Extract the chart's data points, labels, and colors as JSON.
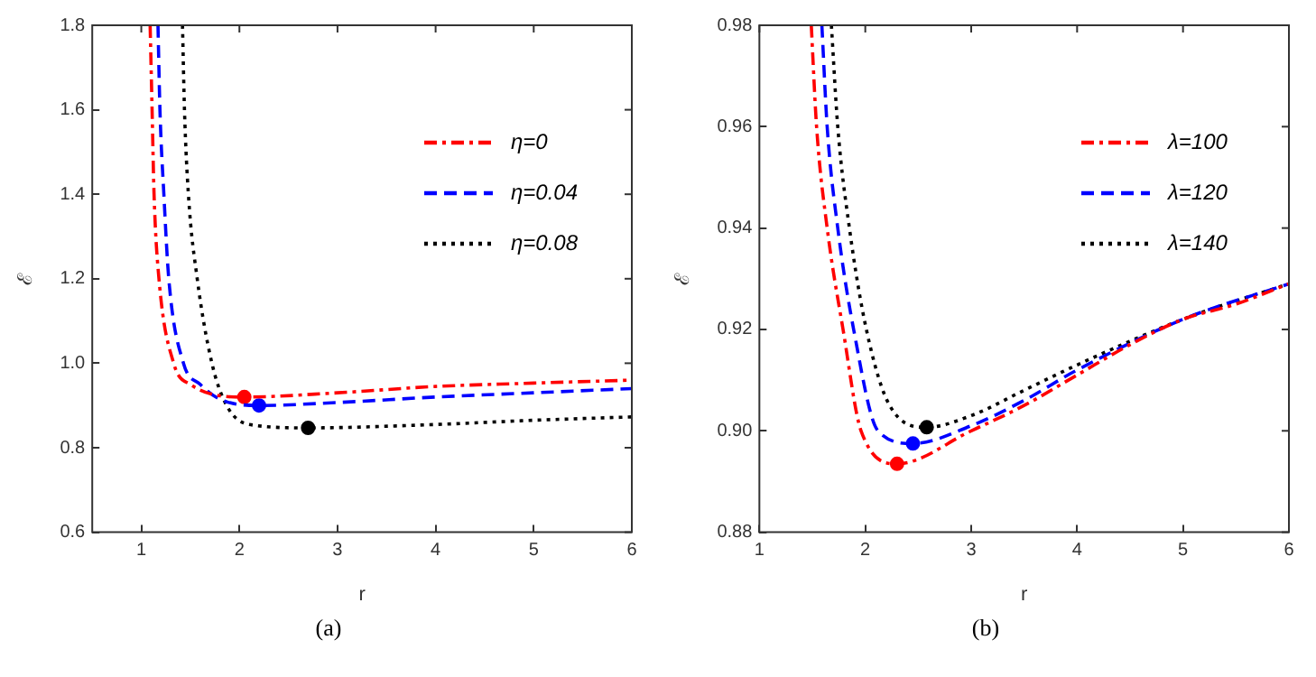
{
  "chart_data": [
    {
      "type": "line",
      "xlabel": "r",
      "ylabel": "ℰ",
      "annotations": [
        "(a)"
      ],
      "xlim": [
        0.5,
        6
      ],
      "ylim": [
        0.6,
        1.8
      ],
      "xticks": [
        1,
        2,
        3,
        4,
        5,
        6
      ],
      "yticks": [
        0.6,
        0.8,
        {
          "value": 1,
          "label": "1.0"
        },
        1.2,
        1.4,
        1.6,
        1.8
      ],
      "grid": false,
      "legend": "top right",
      "series": [
        {
          "name": "η=0",
          "color": "#ff0000",
          "line_style": "dashdot",
          "marker": "none",
          "x": [
            1.09,
            1.11,
            1.13,
            1.18,
            1.33,
            1.5,
            2.05,
            3,
            4,
            5,
            6
          ],
          "values": [
            1.8,
            1.6,
            1.4,
            1.2,
            1.0,
            0.95,
            0.92,
            0.93,
            0.945,
            0.953,
            0.96
          ]
        },
        {
          "name": "η=0.04",
          "color": "#0000ff",
          "line_style": "dashed",
          "marker": "none",
          "x": [
            1.17,
            1.19,
            1.23,
            1.28,
            1.43,
            1.6,
            1.8,
            2.2,
            3,
            4,
            5,
            6
          ],
          "values": [
            1.8,
            1.6,
            1.4,
            1.2,
            1.0,
            0.95,
            0.915,
            0.9,
            0.907,
            0.92,
            0.93,
            0.94
          ]
        },
        {
          "name": "η=0.08",
          "color": "#000000",
          "line_style": "dotted",
          "marker": "none",
          "x": [
            1.42,
            1.44,
            1.48,
            1.57,
            1.72,
            1.87,
            2.1,
            2.7,
            4,
            5,
            6
          ],
          "values": [
            1.8,
            1.6,
            1.4,
            1.2,
            1.0,
            0.9,
            0.855,
            0.847,
            0.855,
            0.865,
            0.873
          ]
        },
        {
          "type": "scatter",
          "color": "#ff0000",
          "marker": "circle",
          "x": [
            2.05
          ],
          "values": [
            0.92
          ]
        },
        {
          "type": "scatter",
          "color": "#0000ff",
          "marker": "circle",
          "x": [
            2.2
          ],
          "values": [
            0.9
          ]
        },
        {
          "type": "scatter",
          "color": "#000000",
          "marker": "circle",
          "x": [
            2.7
          ],
          "values": [
            0.847
          ]
        }
      ]
    },
    {
      "type": "line",
      "xlabel": "r",
      "ylabel": "ℰ",
      "annotations": [
        "(b)"
      ],
      "xlim": [
        1,
        6
      ],
      "ylim": [
        0.88,
        0.98
      ],
      "xticks": [
        1,
        2,
        3,
        4,
        5,
        6
      ],
      "yticks": [
        0.88,
        {
          "value": 0.9,
          "label": "0.90"
        },
        0.92,
        0.94,
        0.96,
        0.98
      ],
      "grid": false,
      "legend": "top right",
      "series": [
        {
          "name": "λ=100",
          "color": "#ff0000",
          "line_style": "dashdot",
          "marker": "none",
          "x": [
            1.49,
            1.54,
            1.64,
            1.79,
            1.96,
            2.3,
            3,
            3.5,
            4,
            4.5,
            5,
            5.5,
            6
          ],
          "values": [
            0.98,
            0.96,
            0.94,
            0.92,
            0.9,
            0.8935,
            0.9,
            0.905,
            0.911,
            0.917,
            0.922,
            0.925,
            0.929
          ]
        },
        {
          "name": "λ=120",
          "color": "#0000ff",
          "line_style": "dashed",
          "marker": "none",
          "x": [
            1.59,
            1.64,
            1.74,
            1.89,
            2.12,
            2.45,
            3,
            3.5,
            4,
            5,
            6
          ],
          "values": [
            0.98,
            0.96,
            0.94,
            0.92,
            0.9,
            0.8975,
            0.901,
            0.906,
            0.912,
            0.922,
            0.929
          ]
        },
        {
          "name": "λ=140",
          "color": "#000000",
          "line_style": "dotted",
          "marker": "none",
          "x": [
            1.68,
            1.74,
            1.85,
            2.01,
            2.23,
            2.58,
            3,
            3.5,
            4,
            5,
            6
          ],
          "values": [
            0.98,
            0.96,
            0.94,
            0.92,
            0.905,
            0.9007,
            0.903,
            0.908,
            0.913,
            0.922,
            0.929
          ]
        },
        {
          "type": "scatter",
          "color": "#ff0000",
          "marker": "circle",
          "x": [
            2.3
          ],
          "values": [
            0.8935
          ]
        },
        {
          "type": "scatter",
          "color": "#0000ff",
          "marker": "circle",
          "x": [
            2.45
          ],
          "values": [
            0.8975
          ]
        },
        {
          "type": "scatter",
          "color": "#000000",
          "marker": "circle",
          "x": [
            2.58
          ],
          "values": [
            0.9007
          ]
        }
      ]
    }
  ]
}
